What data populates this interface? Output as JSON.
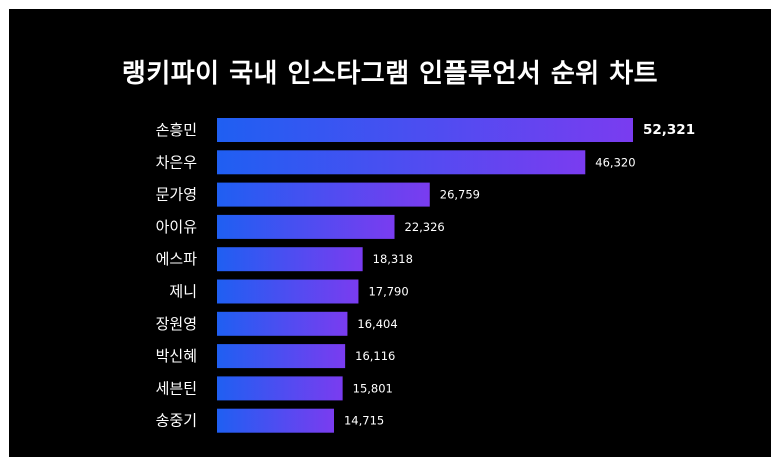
{
  "title": "랭키파이 국내 인스타그램 인플루언서 순위 차트",
  "colors": {
    "background": "#000000",
    "bar_start": "#1f5ff2",
    "bar_end": "#7a3cf0",
    "text": "#ffffff"
  },
  "chart_data": {
    "type": "bar",
    "orientation": "horizontal",
    "title": "랭키파이 국내 인스타그램 인플루언서 순위 차트",
    "categories": [
      "손흥민",
      "차은우",
      "문가영",
      "아이유",
      "에스파",
      "제니",
      "장원영",
      "박신혜",
      "세븐틴",
      "송중기"
    ],
    "values": [
      52321,
      46320,
      26759,
      22326,
      18318,
      17790,
      16404,
      16116,
      15801,
      14715
    ],
    "value_labels": [
      "52,321",
      "46,320",
      "26,759",
      "22,326",
      "18,318",
      "17,790",
      "16,404",
      "16,116",
      "15,801",
      "14,715"
    ],
    "xlim": [
      0,
      52321
    ],
    "grid": false,
    "legend": "none"
  }
}
